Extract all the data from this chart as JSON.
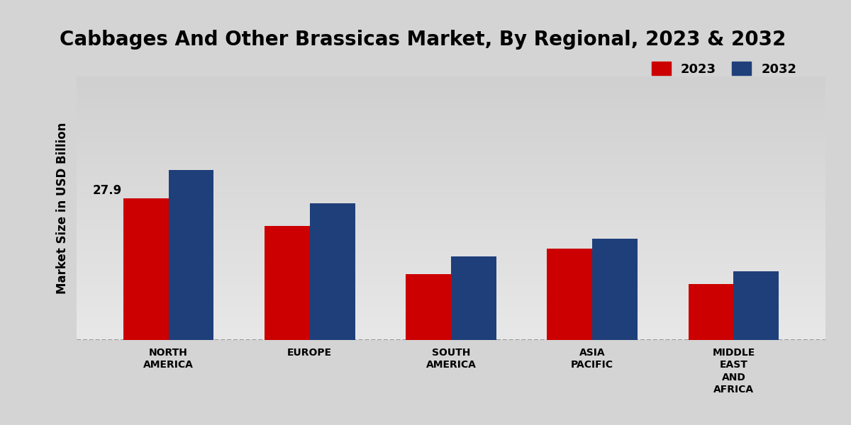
{
  "title": "Cabbages And Other Brassicas Market, By Regional, 2023 & 2032",
  "ylabel": "Market Size in USD Billion",
  "categories": [
    "NORTH\nAMERICA",
    "EUROPE",
    "SOUTH\nAMERICA",
    "ASIA\nPACIFIC",
    "MIDDLE\nEAST\nAND\nAFRICA"
  ],
  "values_2023": [
    27.9,
    22.5,
    13.0,
    18.0,
    11.0
  ],
  "values_2032": [
    33.5,
    27.0,
    16.5,
    20.0,
    13.5
  ],
  "color_2023": "#cc0000",
  "color_2032": "#1f3f7a",
  "label_2023": "2023",
  "label_2032": "2032",
  "annotation_value": "27.9",
  "bar_width": 0.32,
  "ylim_max": 52,
  "title_fontsize": 20,
  "ylabel_fontsize": 12,
  "tick_fontsize": 10,
  "legend_fontsize": 13,
  "bg_top": "#f0f0f0",
  "bg_bottom": "#c8c8c8"
}
